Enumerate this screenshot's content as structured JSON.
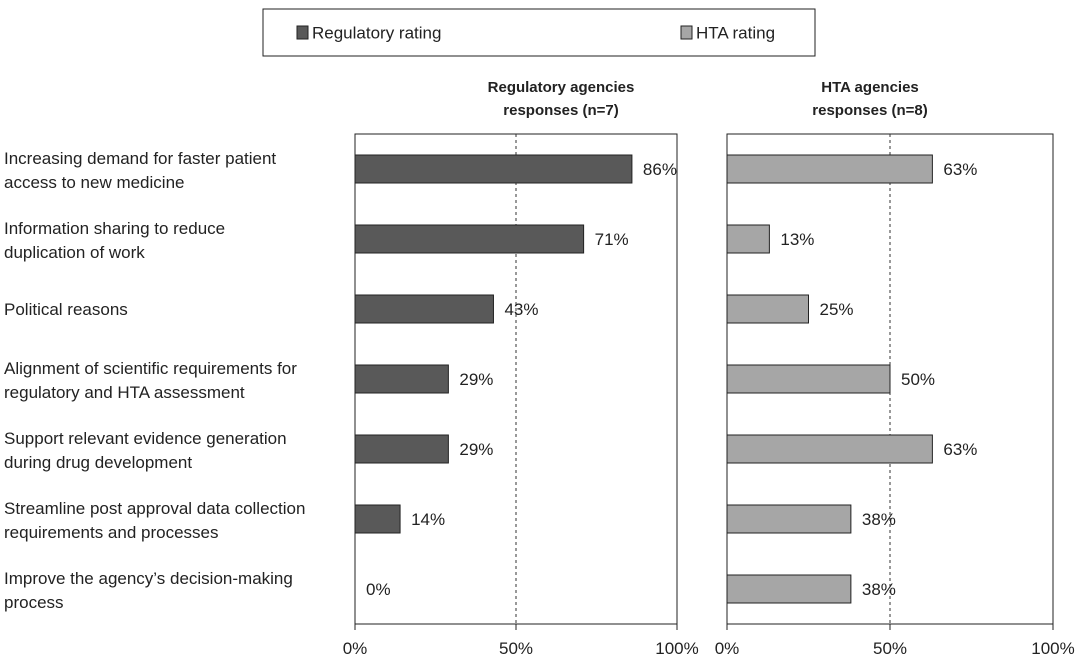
{
  "chart_data": {
    "type": "bar",
    "orientation": "horizontal",
    "categories": [
      [
        "Increasing demand for faster patient",
        "access to new medicine"
      ],
      [
        "Information sharing to reduce",
        "duplication of work"
      ],
      [
        "Political reasons"
      ],
      [
        "Alignment of scientific requirements for",
        "regulatory and HTA assessment"
      ],
      [
        "Support relevant evidence generation",
        "during drug development"
      ],
      [
        "Streamline post approval data collection",
        "requirements and processes"
      ],
      [
        "Improve the agency’s decision-making",
        "process"
      ]
    ],
    "legend": {
      "position": "top",
      "items": [
        {
          "name": "Regulatory rating",
          "color": "#595959"
        },
        {
          "name": "HTA rating",
          "color": "#a6a6a6"
        }
      ]
    },
    "xlim": [
      0,
      100
    ],
    "xticks": [
      "0%",
      "50%",
      "100%"
    ],
    "reference_line": 50,
    "grid": false,
    "panels": [
      {
        "title": [
          "Regulatory agencies",
          "responses (n=7)"
        ],
        "series": "Regulatory rating",
        "color": "#595959",
        "values": [
          86,
          71,
          43,
          29,
          29,
          14,
          0
        ],
        "labels": [
          "86%",
          "71%",
          "43%",
          "29%",
          "29%",
          "14%",
          "0%"
        ]
      },
      {
        "title": [
          "HTA agencies",
          "responses (n=8)"
        ],
        "series": "HTA rating",
        "color": "#a6a6a6",
        "values": [
          63,
          13,
          25,
          50,
          63,
          38,
          38
        ],
        "labels": [
          "63%",
          "13%",
          "25%",
          "50%",
          "63%",
          "38%",
          "38%"
        ]
      }
    ]
  }
}
